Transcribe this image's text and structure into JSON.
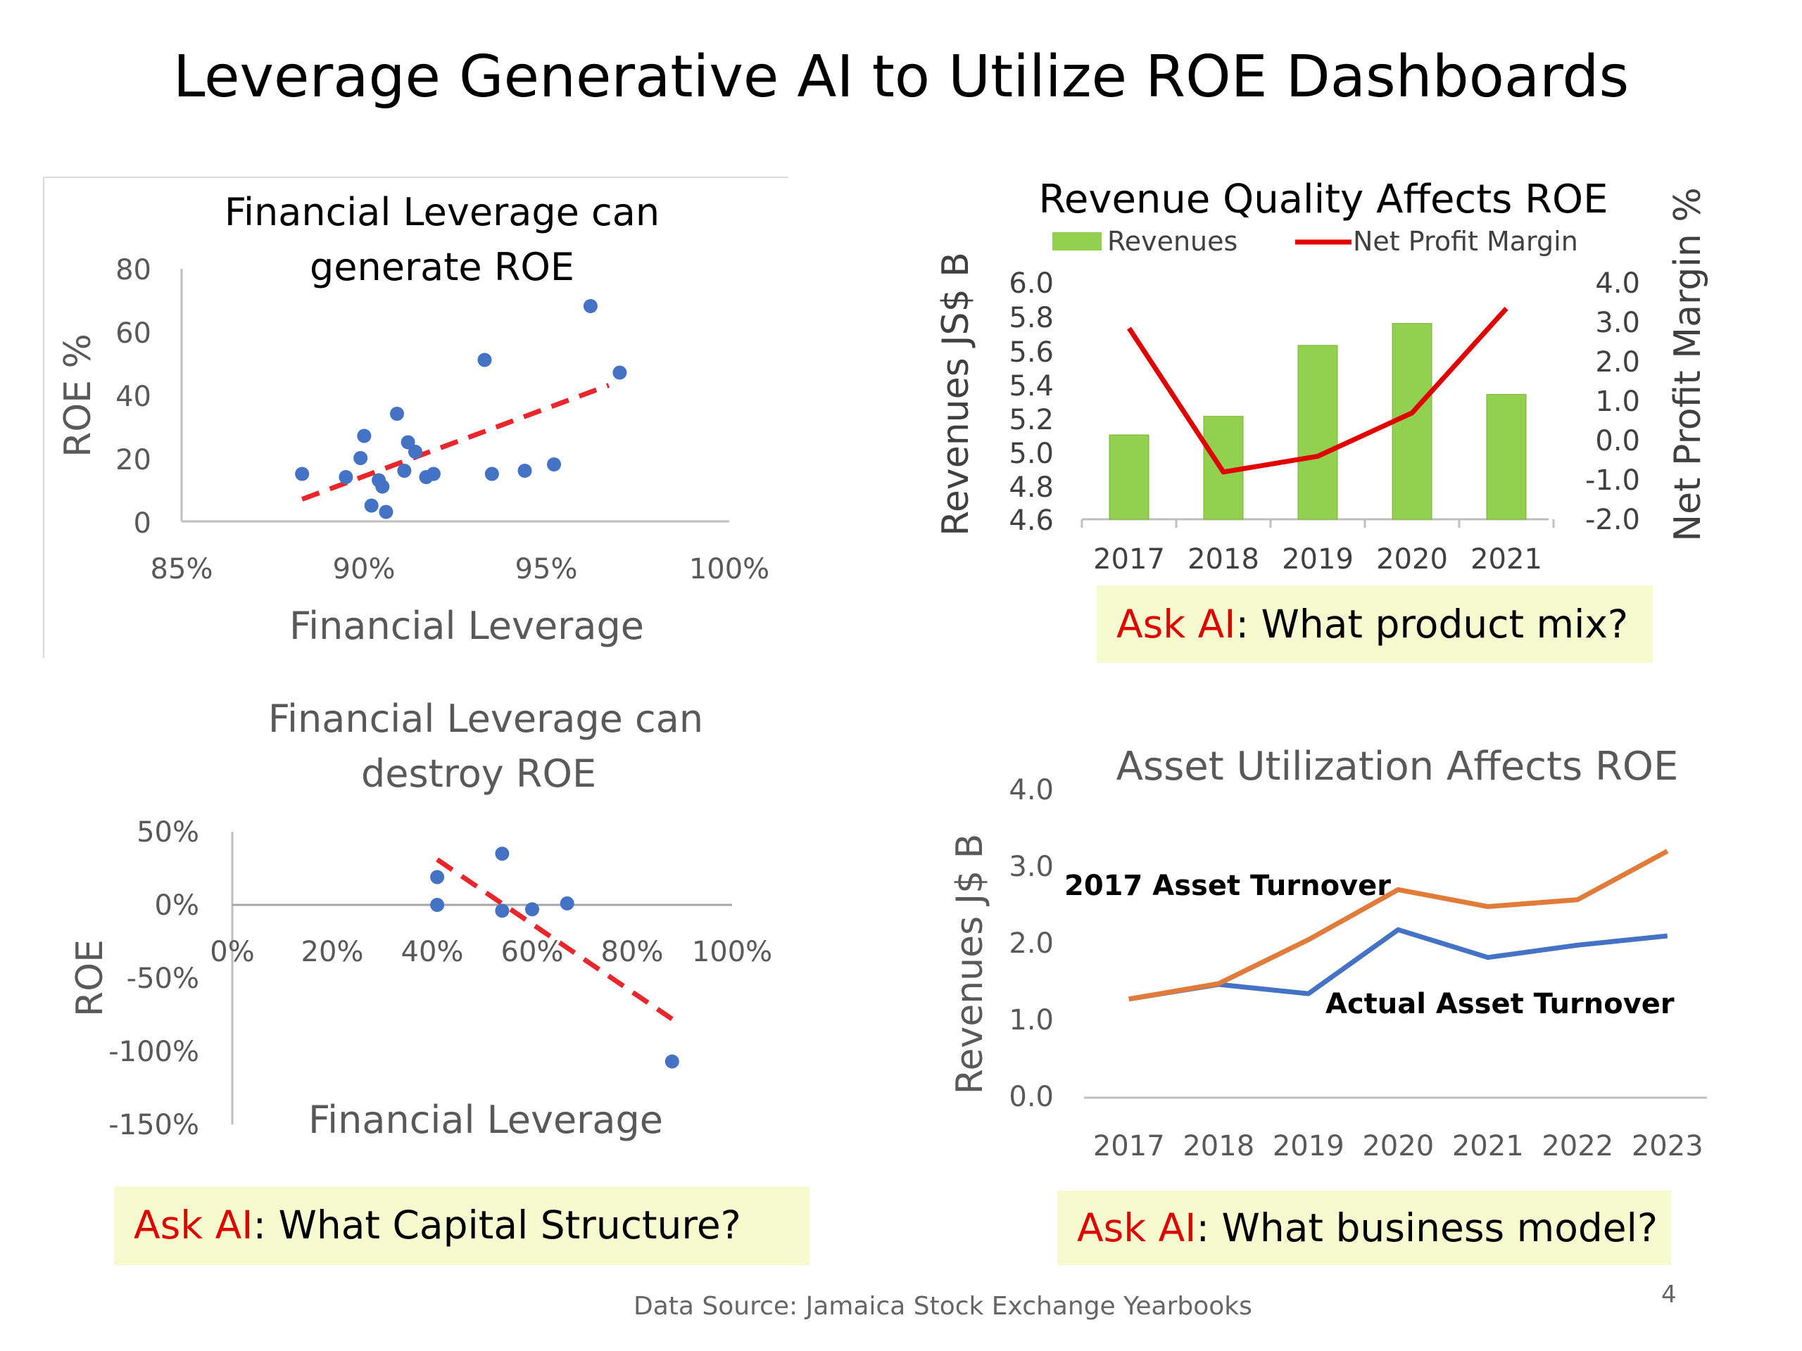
{
  "slide": {
    "title": "Leverage Generative AI to Utilize ROE Dashboards",
    "source": "Data Source: Jamaica Stock Exchange Yearbooks",
    "page": "4"
  },
  "callouts": {
    "ask_label": "Ask AI",
    "top_right": ": What product mix?",
    "bottom_left": ": What Capital Structure?",
    "bottom_right": ": What business model?"
  },
  "colors": {
    "scatter": "#4472c4",
    "trend": "#e8262b",
    "bar": "#92d050",
    "npm_line": "#e00000",
    "turnover_2017": "#e07b39",
    "turnover_actual": "#4472c4",
    "ask_text": "#e00000",
    "callout_bg": "#f6fbcf"
  },
  "chart_data": [
    {
      "id": "tl",
      "type": "scatter",
      "title_lines": [
        "Financial Leverage can",
        "generate ROE"
      ],
      "xlabel": "Financial Leverage",
      "ylabel": "ROE %",
      "xlim": [
        0.85,
        1.0
      ],
      "ylim": [
        0,
        80
      ],
      "xticks": [
        0.85,
        0.9,
        0.95,
        1.0
      ],
      "xtick_labels": [
        "85%",
        "90%",
        "95%",
        "100%"
      ],
      "yticks": [
        0,
        20,
        40,
        60,
        80
      ],
      "ytick_labels": [
        "0",
        "20",
        "40",
        "60",
        "80"
      ],
      "points": [
        [
          0.883,
          15
        ],
        [
          0.895,
          14
        ],
        [
          0.899,
          20
        ],
        [
          0.9,
          27
        ],
        [
          0.902,
          5
        ],
        [
          0.904,
          13
        ],
        [
          0.905,
          11
        ],
        [
          0.906,
          3
        ],
        [
          0.909,
          34
        ],
        [
          0.911,
          16
        ],
        [
          0.912,
          25
        ],
        [
          0.914,
          22
        ],
        [
          0.917,
          14
        ],
        [
          0.919,
          15
        ],
        [
          0.933,
          51
        ],
        [
          0.935,
          15
        ],
        [
          0.944,
          16
        ],
        [
          0.952,
          18
        ],
        [
          0.962,
          68
        ],
        [
          0.97,
          47
        ]
      ],
      "trendline": [
        [
          0.883,
          7
        ],
        [
          0.967,
          43
        ]
      ],
      "grid": false
    },
    {
      "id": "tr",
      "type": "bar+line",
      "title": "Revenue Quality Affects ROE",
      "categories": [
        "2017",
        "2018",
        "2019",
        "2020",
        "2021"
      ],
      "ylabel_left": "Revenues JS$ B",
      "ylabel_right": "Net Profit Margin %",
      "ylim_left": [
        4.6,
        6.0
      ],
      "yticks_left": [
        "6.0",
        "5.8",
        "5.6",
        "5.4",
        "5.2",
        "5.0",
        "4.8",
        "4.6"
      ],
      "ylim_right": [
        -2.0,
        4.0
      ],
      "yticks_right": [
        "4.0",
        "3.0",
        "2.0",
        "1.0",
        "0.0",
        "-1.0",
        "-2.0"
      ],
      "series": [
        {
          "name": "Revenues",
          "kind": "bar",
          "axis": "left",
          "values": [
            5.1,
            5.21,
            5.63,
            5.76,
            5.34
          ]
        },
        {
          "name": "Net Profit Margin",
          "kind": "line",
          "axis": "right",
          "values": [
            2.85,
            -0.8,
            -0.4,
            0.7,
            3.35
          ]
        }
      ],
      "legend": "top"
    },
    {
      "id": "bl",
      "type": "scatter",
      "title_lines": [
        "Financial Leverage can",
        "destroy ROE"
      ],
      "xlabel": "Financial Leverage",
      "ylabel": "ROE",
      "xlim": [
        0,
        1.0
      ],
      "ylim": [
        -1.5,
        0.5
      ],
      "xtick_labels": [
        "0%",
        "20%",
        "40%",
        "60%",
        "80%",
        "100%"
      ],
      "ytick_labels": [
        "50%",
        "0%",
        "-50%",
        "-100%",
        "-150%"
      ],
      "points": [
        [
          0.41,
          0.19
        ],
        [
          0.41,
          0.0
        ],
        [
          0.54,
          -0.04
        ],
        [
          0.54,
          0.35
        ],
        [
          0.6,
          -0.03
        ],
        [
          0.67,
          0.01
        ],
        [
          0.88,
          -1.07
        ]
      ],
      "trendline": [
        [
          0.41,
          0.31
        ],
        [
          0.88,
          -0.78
        ]
      ],
      "grid": false
    },
    {
      "id": "br",
      "type": "line",
      "title": "Asset Utilization Affects ROE",
      "ylabel": "Revenues J$ B",
      "categories": [
        "2017",
        "2018",
        "2019",
        "2020",
        "2021",
        "2022",
        "2023"
      ],
      "ylim": [
        0,
        4.0
      ],
      "yticks": [
        "4.0",
        "3.0",
        "2.0",
        "1.0",
        "0.0"
      ],
      "series": [
        {
          "name": "2017 Asset Turnover",
          "values": [
            1.28,
            1.48,
            2.05,
            2.7,
            2.48,
            2.57,
            3.2
          ]
        },
        {
          "name": "Actual Asset Turnover",
          "values": [
            1.28,
            1.47,
            1.35,
            2.18,
            1.82,
            1.98,
            2.1
          ]
        }
      ]
    }
  ]
}
